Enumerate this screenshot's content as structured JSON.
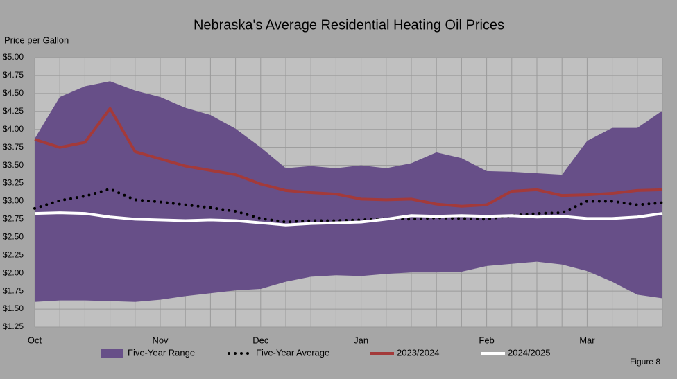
{
  "chart_data": {
    "type": "line",
    "title": "Nebraska's Average Residential Heating Oil Prices",
    "y_label": "Price per Gallon",
    "note": "Figure 8",
    "categories": [
      "Oct",
      null,
      null,
      null,
      null,
      "Nov",
      null,
      null,
      null,
      "Dec",
      null,
      null,
      null,
      "Jan",
      null,
      null,
      null,
      null,
      "Feb",
      null,
      null,
      null,
      "Mar",
      null,
      null,
      null
    ],
    "ylim": [
      1.25,
      5.0
    ],
    "yticks": [
      {
        "value": 1.25,
        "label": "$1.25"
      },
      {
        "value": 1.5,
        "label": "$1.50"
      },
      {
        "value": 1.75,
        "label": "$1.75"
      },
      {
        "value": 2.0,
        "label": "$2.00"
      },
      {
        "value": 2.25,
        "label": "$2.25"
      },
      {
        "value": 2.5,
        "label": "$2.50"
      },
      {
        "value": 2.75,
        "label": "$2.75"
      },
      {
        "value": 3.0,
        "label": "$3.00"
      },
      {
        "value": 3.25,
        "label": "$3.25"
      },
      {
        "value": 3.5,
        "label": "$3.50"
      },
      {
        "value": 3.75,
        "label": "$3.75"
      },
      {
        "value": 4.0,
        "label": "$4.00"
      },
      {
        "value": 4.25,
        "label": "$4.25"
      },
      {
        "value": 4.5,
        "label": "$4.50"
      },
      {
        "value": 4.75,
        "label": "$4.75"
      },
      {
        "value": 5.0,
        "label": "$5.00"
      }
    ],
    "grid": true,
    "series": [
      {
        "name": "Five-Year Range",
        "color": "#674f88",
        "style": "range",
        "high": [
          3.87,
          4.45,
          4.6,
          4.67,
          4.54,
          4.45,
          4.3,
          4.2,
          4.01,
          3.75,
          3.46,
          3.49,
          3.46,
          3.5,
          3.46,
          3.53,
          3.68,
          3.6,
          3.42,
          3.41,
          3.39,
          3.37,
          3.84,
          4.02,
          4.02,
          4.26
        ],
        "low": [
          1.6,
          1.62,
          1.62,
          1.61,
          1.6,
          1.63,
          1.68,
          1.72,
          1.76,
          1.78,
          1.88,
          1.95,
          1.97,
          1.96,
          1.99,
          2.01,
          2.01,
          2.02,
          2.1,
          2.13,
          2.16,
          2.12,
          2.03,
          1.88,
          1.7,
          1.65
        ]
      },
      {
        "name": "Five-Year Average",
        "color": "#000000",
        "style": "dotted",
        "values": [
          2.9,
          3.01,
          3.07,
          3.17,
          3.02,
          2.99,
          2.95,
          2.91,
          2.86,
          2.76,
          2.71,
          2.73,
          2.73,
          2.74,
          2.76,
          2.75,
          2.77,
          2.76,
          2.75,
          2.8,
          2.83,
          2.84,
          3.0,
          3.0,
          2.95,
          2.98
        ]
      },
      {
        "name": "2023/2024",
        "color": "#a33a3a",
        "style": "solid",
        "values": [
          3.86,
          3.75,
          3.82,
          4.29,
          3.69,
          3.59,
          3.49,
          3.43,
          3.37,
          3.24,
          3.15,
          3.12,
          3.1,
          3.03,
          3.02,
          3.03,
          2.96,
          2.93,
          2.95,
          3.14,
          3.16,
          3.08,
          3.09,
          3.11,
          3.15,
          3.16
        ]
      },
      {
        "name": "2024/2025",
        "color": "#ffffff",
        "style": "solid",
        "values": [
          2.83,
          2.84,
          2.83,
          2.78,
          2.75,
          2.74,
          2.73,
          2.74,
          2.73,
          2.7,
          2.67,
          2.69,
          2.7,
          2.71,
          2.75,
          2.8,
          2.79,
          2.8,
          2.79,
          2.8,
          2.78,
          2.79,
          2.76,
          2.76,
          2.78,
          2.83
        ]
      }
    ]
  }
}
